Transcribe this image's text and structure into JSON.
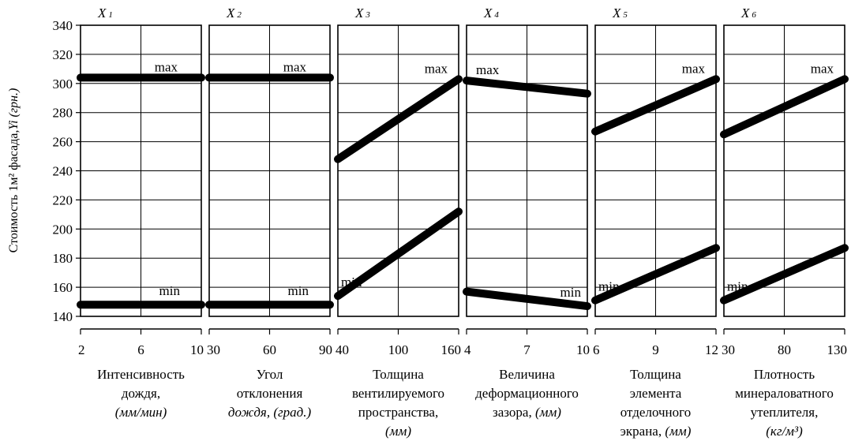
{
  "chart_data": {
    "type": "line",
    "ylabel": "Стоимость 1м² фасада, Yi (грн.)",
    "ylabel_main": "Стоимость 1м² фасада,",
    "ylabel_var": "Yi",
    "ylabel_unit": "(грн.)",
    "ylim": [
      140,
      340
    ],
    "yticks": [
      140,
      160,
      180,
      200,
      220,
      240,
      260,
      280,
      300,
      320,
      340
    ],
    "grid": true,
    "panels": [
      {
        "title": "X1",
        "xticks": [
          "2",
          "6",
          "10"
        ],
        "xlabel_lines": [
          "Интенсивность",
          "дождя,"
        ],
        "xunit_lines": [
          "(мм/мин)"
        ],
        "series": [
          {
            "name": "max",
            "x": [
              2,
              10
            ],
            "y": [
              304,
              304
            ]
          },
          {
            "name": "min",
            "x": [
              2,
              10
            ],
            "y": [
              148,
              148
            ]
          }
        ]
      },
      {
        "title": "X2",
        "xticks": [
          "30",
          "60",
          "90"
        ],
        "xlabel_lines": [
          "Угол",
          "отклонения"
        ],
        "xunit_lines": [
          "дождя, (град.)"
        ],
        "series": [
          {
            "name": "max",
            "x": [
              30,
              90
            ],
            "y": [
              304,
              304
            ]
          },
          {
            "name": "min",
            "x": [
              30,
              90
            ],
            "y": [
              148,
              148
            ]
          }
        ]
      },
      {
        "title": "X3",
        "xticks": [
          "40",
          "100",
          "160"
        ],
        "xlabel_lines": [
          "Толщина",
          "вентилируемого",
          "пространства,"
        ],
        "xunit_lines": [
          "(мм)"
        ],
        "series": [
          {
            "name": "max",
            "x": [
              40,
              160
            ],
            "y": [
              248,
              303
            ]
          },
          {
            "name": "min",
            "x": [
              40,
              160
            ],
            "y": [
              154,
              212
            ]
          }
        ]
      },
      {
        "title": "X4",
        "xticks": [
          "4",
          "7",
          "10"
        ],
        "xlabel_lines": [
          "Величина",
          "деформационного"
        ],
        "xunit_lines": [
          "зазора, (мм)"
        ],
        "series": [
          {
            "name": "max",
            "x": [
              4,
              10
            ],
            "y": [
              302,
              293
            ]
          },
          {
            "name": "min",
            "x": [
              4,
              10
            ],
            "y": [
              157,
              147
            ]
          }
        ]
      },
      {
        "title": "X5",
        "xticks": [
          "6",
          "9",
          "12"
        ],
        "xlabel_lines": [
          "Толщина",
          "элемента",
          "отделочного"
        ],
        "xunit_lines": [
          "экрана, (мм)"
        ],
        "series": [
          {
            "name": "max",
            "x": [
              6,
              12
            ],
            "y": [
              267,
              303
            ]
          },
          {
            "name": "min",
            "x": [
              6,
              12
            ],
            "y": [
              151,
              187
            ]
          }
        ]
      },
      {
        "title": "X6",
        "xticks": [
          "30",
          "80",
          "130"
        ],
        "xlabel_lines": [
          "Плотность",
          "минераловатного",
          "утеплителя,"
        ],
        "xunit_lines": [
          "(кг/м³)"
        ],
        "series": [
          {
            "name": "max",
            "x": [
              30,
              130
            ],
            "y": [
              265,
              303
            ]
          },
          {
            "name": "min",
            "x": [
              30,
              130
            ],
            "y": [
              151,
              187
            ]
          }
        ]
      }
    ]
  }
}
